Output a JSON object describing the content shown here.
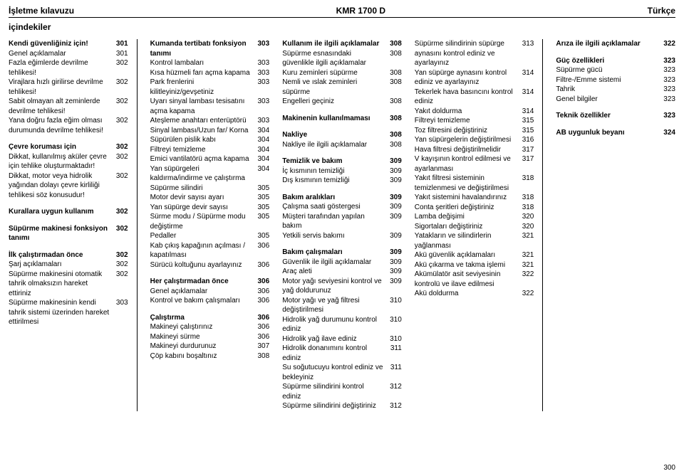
{
  "header": {
    "left": "İşletme kılavuzu",
    "center": "KMR 1700 D",
    "right": "Türkçe"
  },
  "subtitle": "içindekiler",
  "footer_page": "300",
  "columns": [
    [
      {
        "label": "Kendi güvenliğiniz için!",
        "page": "301",
        "bold": true
      },
      {
        "label": "Genel açıklamalar",
        "page": "301"
      },
      {
        "label": "Fazla eğimlerde devrilme tehlikesi!",
        "page": "302"
      },
      {
        "label": "Virajlara hızlı girilirse devrilme tehlikesi!",
        "page": "302"
      },
      {
        "label": "Sabit olmayan alt zeminlerde devrilme tehlikesi!",
        "page": "302"
      },
      {
        "label": "Yana doğru fazla eğim olması durumunda devrilme tehlikesi!",
        "page": "302"
      },
      {
        "spacer": true
      },
      {
        "label": "Çevre koruması için",
        "page": "302",
        "bold": true
      },
      {
        "label": "Dikkat, kullanılmış aküler çevre için tehlike oluşturmaktadır!",
        "page": "302"
      },
      {
        "label": "Dikkat, motor veya hidrolik yağından dolayı çevre kirliliği tehlikesi söz konusudur!",
        "page": "302"
      },
      {
        "spacer": true
      },
      {
        "label": "Kurallara uygun kullanım",
        "page": "302",
        "bold": true
      },
      {
        "spacer": true
      },
      {
        "label": "Süpürme makinesi fonksiyon tanımı",
        "page": "302",
        "bold": true
      },
      {
        "spacer": true
      },
      {
        "label": "İlk çalıştırmadan önce",
        "page": "302",
        "bold": true
      },
      {
        "label": "Şarj açıklamaları",
        "page": "302"
      },
      {
        "label": "Süpürme makinesini otomatik tahrik olmaksızın hareket ettiriniz",
        "page": "302"
      },
      {
        "label": "Süpürme makinesinin kendi tahrik sistemi üzerinden hareket ettirilmesi",
        "page": "303"
      }
    ],
    [
      {
        "label": "Kumanda tertibatı fonksiyon tanımı",
        "page": "303",
        "bold": true
      },
      {
        "label": "Kontrol lambaları",
        "page": "303"
      },
      {
        "label": "Kısa hüzmeli farı açma kapama",
        "page": "303"
      },
      {
        "label": "Park frenlerini kilitleyiniz/gevşetiniz",
        "page": "303"
      },
      {
        "label": "Uyarı sinyal lambası tesisatını açma kapama",
        "page": "303"
      },
      {
        "label": "Ateşleme anahtarı enterüptörü",
        "page": "303"
      },
      {
        "label": "Sinyal lambası/Uzun far/ Korna",
        "page": "304"
      },
      {
        "label": "Süpürülen pislik kabı",
        "page": "304"
      },
      {
        "label": "Filtreyi temizleme",
        "page": "304"
      },
      {
        "label": "Emici vantilatörü açma kapama",
        "page": "304"
      },
      {
        "label": "Yan süpürgeleri kaldırma/indirme ve çalıştırma",
        "page": "304"
      },
      {
        "label": "Süpürme silindiri",
        "page": "305"
      },
      {
        "label": "Motor devir sayısı ayarı",
        "page": "305"
      },
      {
        "label": "Yan süpürge devir sayısı",
        "page": "305"
      },
      {
        "label": "Sürme modu / Süpürme modu değiştirme",
        "page": "305"
      },
      {
        "label": "Pedaller",
        "page": "305"
      },
      {
        "label": "Kab çıkış kapağının açılması / kapatılması",
        "page": "306"
      },
      {
        "label": "Sürücü koltuğunu ayarlayınız",
        "page": "306"
      },
      {
        "spacer": true
      },
      {
        "label": "Her çalıştırmadan önce",
        "page": "306",
        "bold": true
      },
      {
        "label": "Genel açıklamalar",
        "page": "306"
      },
      {
        "label": "Kontrol ve bakım çalışmaları",
        "page": "306"
      },
      {
        "spacer": true
      },
      {
        "label": "Çalıştırma",
        "page": "306",
        "bold": true
      },
      {
        "label": "Makineyi çalıştırınız",
        "page": "306"
      },
      {
        "label": "Makineyi sürme",
        "page": "306"
      },
      {
        "label": "Makineyi durdurunuz",
        "page": "307"
      },
      {
        "label": "Çöp kabını boşaltınız",
        "page": "308"
      }
    ],
    [
      {
        "label": "Kullanım ile ilgili açıklamalar",
        "page": "308",
        "bold": true
      },
      {
        "label": "Süpürme esnasındaki güvenlikle ilgili açıklamalar",
        "page": "308"
      },
      {
        "label": "Kuru zeminleri süpürme",
        "page": "308"
      },
      {
        "label": "Nemli ve ıslak zeminleri süpürme",
        "page": "308"
      },
      {
        "label": "Engelleri geçiniz",
        "page": "308"
      },
      {
        "spacer": true
      },
      {
        "label": "Makinenin kullanılmaması",
        "page": "308",
        "bold": true
      },
      {
        "spacer": true
      },
      {
        "label": "Nakliye",
        "page": "308",
        "bold": true
      },
      {
        "label": "Nakliye ile ilgili açıklamalar",
        "page": "308"
      },
      {
        "spacer": true
      },
      {
        "label": "Temizlik ve bakım",
        "page": "309",
        "bold": true
      },
      {
        "label": "İç kısmının temizliği",
        "page": "309"
      },
      {
        "label": "Dış kısmının temizliği",
        "page": "309"
      },
      {
        "spacer": true
      },
      {
        "label": "Bakım aralıkları",
        "page": "309",
        "bold": true
      },
      {
        "label": "Çalışma saati göstergesi",
        "page": "309"
      },
      {
        "label": "Müşteri tarafından yapılan bakım",
        "page": "309"
      },
      {
        "label": "Yetkili servis bakımı",
        "page": "309"
      },
      {
        "spacer": true
      },
      {
        "label": "Bakım çalışmaları",
        "page": "309",
        "bold": true
      },
      {
        "label": "Güvenlik ile ilgili açıklamalar",
        "page": "309"
      },
      {
        "label": "Araç aleti",
        "page": "309"
      },
      {
        "label": "Motor yağı seviyesini kontrol ve yağ doldurunuz",
        "page": "309"
      },
      {
        "label": "Motor yağı ve yağ filtresi değiştirilmesi",
        "page": "310"
      },
      {
        "label": "Hidrolik yağ durumunu kontrol ediniz",
        "page": "310"
      },
      {
        "label": "Hidrolik yağ ilave ediniz",
        "page": "310"
      },
      {
        "label": "Hidrolik donanımını kontrol ediniz",
        "page": "311"
      },
      {
        "label": "Su soğutucuyu kontrol ediniz ve bekleyiniz",
        "page": "311"
      },
      {
        "label": "Süpürme silindirini kontrol ediniz",
        "page": "312"
      },
      {
        "label": "Süpürme silindirini değiştiriniz",
        "page": "312"
      }
    ],
    [
      {
        "label": "Süpürme silindirinin süpürge aynasını kontrol ediniz ve ayarlayınız",
        "page": "313"
      },
      {
        "label": "Yan süpürge aynasını kontrol ediniz ve ayarlayınız",
        "page": "314"
      },
      {
        "label": "Tekerlek hava basıncını kontrol ediniz",
        "page": "314"
      },
      {
        "label": "Yakıt doldurma",
        "page": "314"
      },
      {
        "label": "Filtreyi temizleme",
        "page": "315"
      },
      {
        "label": "Toz filtresini değiştiriniz",
        "page": "315"
      },
      {
        "label": "Yan süpürgelerin değiştirilmesi",
        "page": "316"
      },
      {
        "label": "Hava filtresi değiştirilmelidir",
        "page": "317"
      },
      {
        "label": "V kayışının kontrol edilmesi ve ayarlanması",
        "page": "317"
      },
      {
        "label": "Yakıt filtresi sisteminin temizlenmesi ve değiştirilmesi",
        "page": "318"
      },
      {
        "label": "Yakıt sistemini havalandırınız",
        "page": "318"
      },
      {
        "label": "Conta şeritleri değiştiriniz",
        "page": "318"
      },
      {
        "label": "Lamba değişimi",
        "page": "320"
      },
      {
        "label": "Sigortaları değiştiriniz",
        "page": "320"
      },
      {
        "label": "Yatakların ve silindirlerin yağlanması",
        "page": "321"
      },
      {
        "label": "Akü güvenlik açıklamaları",
        "page": "321"
      },
      {
        "label": "Akü çıkarma ve takma işlemi",
        "page": "321"
      },
      {
        "label": "Akümülatör asit seviyesinin kontrolü ve ilave edilmesi",
        "page": "322"
      },
      {
        "label": "Akü doldurma",
        "page": "322"
      }
    ],
    [
      {
        "label": "Arıza ile ilgili açıklamalar",
        "page": "322",
        "bold": true
      },
      {
        "spacer": true
      },
      {
        "label": "Güç özellikleri",
        "page": "323",
        "bold": true
      },
      {
        "label": "Süpürme gücü",
        "page": "323"
      },
      {
        "label": "Filtre-/Emme sistemi",
        "page": "323"
      },
      {
        "label": "Tahrik",
        "page": "323"
      },
      {
        "label": "Genel bilgiler",
        "page": "323"
      },
      {
        "spacer": true
      },
      {
        "label": "Teknik özellikler",
        "page": "323",
        "bold": true
      },
      {
        "spacer": true
      },
      {
        "label": "AB uygunluk beyanı",
        "page": "324",
        "bold": true
      }
    ]
  ]
}
